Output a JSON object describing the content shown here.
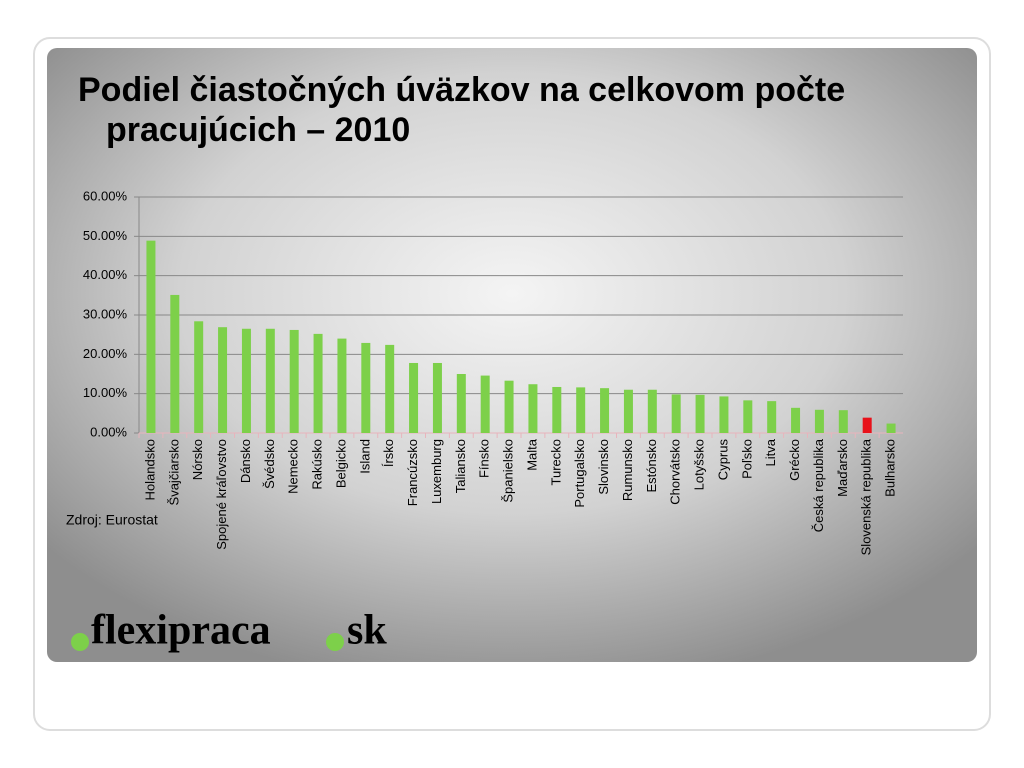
{
  "title": "Podiel čiastočných úväzkov na celkovom počte pracujúcich – 2010",
  "chart_data": {
    "type": "bar",
    "categories": [
      "Holandsko",
      "Švajčiarsko",
      "Nórsko",
      "Spojené kráľovstvo",
      "Dánsko",
      "Švédsko",
      "Nemecko",
      "Rakúsko",
      "Belgicko",
      "Island",
      "Írsko",
      "Francúzsko",
      "Luxemburg",
      "Taliansko",
      "Fínsko",
      "Španielsko",
      "Malta",
      "Turecko",
      "Portugalsko",
      "Slovinsko",
      "Rumunsko",
      "Estónsko",
      "Chorvátsko",
      "Lotyšsko",
      "Cyprus",
      "Poľsko",
      "Litva",
      "Grécko",
      "Česká republika",
      "Maďarsko",
      "Slovenská republika",
      "Bulharsko"
    ],
    "values": [
      48.9,
      35.1,
      28.4,
      26.9,
      26.5,
      26.5,
      26.2,
      25.2,
      24.0,
      22.9,
      22.4,
      17.8,
      17.8,
      15.0,
      14.6,
      13.3,
      12.4,
      11.7,
      11.6,
      11.4,
      11.0,
      11.0,
      9.8,
      9.7,
      9.3,
      8.3,
      8.1,
      6.4,
      5.9,
      5.8,
      3.9,
      2.4
    ],
    "colors": [
      "#7dd04a",
      "#7dd04a",
      "#7dd04a",
      "#7dd04a",
      "#7dd04a",
      "#7dd04a",
      "#7dd04a",
      "#7dd04a",
      "#7dd04a",
      "#7dd04a",
      "#7dd04a",
      "#7dd04a",
      "#7dd04a",
      "#7dd04a",
      "#7dd04a",
      "#7dd04a",
      "#7dd04a",
      "#7dd04a",
      "#7dd04a",
      "#7dd04a",
      "#7dd04a",
      "#7dd04a",
      "#7dd04a",
      "#7dd04a",
      "#7dd04a",
      "#7dd04a",
      "#7dd04a",
      "#7dd04a",
      "#7dd04a",
      "#7dd04a",
      "#e8111a",
      "#7dd04a"
    ],
    "ylim": [
      0,
      60
    ],
    "yticks": [
      {
        "value": 0,
        "label": "0.00%"
      },
      {
        "value": 10,
        "label": "10.00%"
      },
      {
        "value": 20,
        "label": "20.00%"
      },
      {
        "value": 30,
        "label": "30.00%"
      },
      {
        "value": 40,
        "label": "40.00%"
      },
      {
        "value": 50,
        "label": "50.00%"
      },
      {
        "value": 60,
        "label": "60.00%"
      }
    ],
    "grid": true
  },
  "source": "Zdroj:  Eurostat",
  "logo": {
    "name": "flexipraca",
    "domain": "sk"
  }
}
